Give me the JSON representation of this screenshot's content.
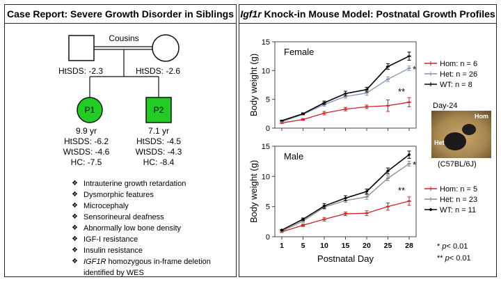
{
  "left_panel": {
    "title": "Case Report: Severe Growth Disorder in Siblings",
    "pedigree": {
      "relation_label": "Cousins",
      "father_htsds": "HtSDS: -2.3",
      "mother_htsds": "HtSDS: -2.6",
      "colors": {
        "affected": "#22cc22",
        "outline": "#111111"
      },
      "patients": [
        {
          "id": "P1",
          "age": "9.9 yr",
          "htsds": "HtSDS: -6.2",
          "wtsds": "WtSDS: -4.6",
          "hc": "HC: -7.5"
        },
        {
          "id": "P2",
          "age": "7.1 yr",
          "htsds": "HtSDS: -4.5",
          "wtsds": "WtSDS: -4.3",
          "hc": "HC: -8.4"
        }
      ]
    },
    "features": [
      "Intrauterine growth retardation",
      "Dysmorphic features",
      "Microcephaly",
      "Sensorineural deafness",
      "Abnormally low bone density",
      "IGF-I resistance",
      "Insulin resistance",
      {
        "em": "IGF1R",
        "rest": " homozygous in-frame deletion"
      },
      "identified by WES"
    ]
  },
  "right_panel": {
    "title_em": "Igf1r",
    "title_rest": " Knock-in Mouse Model: Postnatal Growth Profiles",
    "photo": {
      "label_day": "Day-24",
      "label_hom": "Hom",
      "label_het": "Het",
      "caption": "(C57BL/6J)"
    },
    "pvalues": [
      "* p< 0.01",
      "** p< 0.01"
    ]
  },
  "chart_data": [
    {
      "type": "line",
      "title": "Female",
      "ylabel": "Body weight (g)",
      "xlabel": "",
      "x": [
        1,
        5,
        10,
        15,
        20,
        25,
        28
      ],
      "ylim": [
        0,
        15
      ],
      "yticks": [
        0,
        5,
        10,
        15
      ],
      "xticks": [
        "1",
        "5",
        "10",
        "15",
        "20",
        "25",
        "28"
      ],
      "legend_position": "right",
      "annotations": [
        "*",
        "**"
      ],
      "series": [
        {
          "name": "Hom:  n = 6",
          "color": "#cc2222",
          "marker": "dash",
          "values": [
            0.9,
            1.5,
            2.6,
            3.3,
            3.7,
            3.9,
            4.5
          ],
          "err": [
            0.1,
            0.15,
            0.3,
            0.3,
            0.3,
            1.0,
            0.8
          ]
        },
        {
          "name": "Het:  n = 26",
          "color": "#7f93b5",
          "marker": "dash",
          "values": [
            1.1,
            2.4,
            4.1,
            5.5,
            6.1,
            8.5,
            10.4
          ],
          "err": [
            0.1,
            0.15,
            0.3,
            0.3,
            0.4,
            0.4,
            0.4
          ]
        },
        {
          "name": "WT:    n = 8",
          "color": "#000000",
          "marker": "dash",
          "values": [
            1.3,
            2.5,
            4.4,
            6.0,
            6.7,
            10.7,
            12.5
          ],
          "err": [
            0.1,
            0.15,
            0.3,
            0.4,
            0.4,
            0.5,
            0.7
          ]
        }
      ]
    },
    {
      "type": "line",
      "title": "Male",
      "ylabel": "Body weight (g)",
      "xlabel": "Postnatal Day",
      "x": [
        1,
        5,
        10,
        15,
        20,
        25,
        28
      ],
      "ylim": [
        0,
        15
      ],
      "yticks": [
        0,
        5,
        10,
        15
      ],
      "xticks": [
        "1",
        "5",
        "10",
        "15",
        "20",
        "25",
        "28"
      ],
      "legend_position": "right",
      "annotations": [
        "*",
        "**"
      ],
      "series": [
        {
          "name": "Hom:  n = 5",
          "color": "#cc2222",
          "marker": "dash",
          "values": [
            0.8,
            1.9,
            2.9,
            3.8,
            3.9,
            5.0,
            5.9
          ],
          "err": [
            0.1,
            0.2,
            0.3,
            0.3,
            0.4,
            0.6,
            0.7
          ]
        },
        {
          "name": "Het:   n = 23",
          "color": "#888888",
          "marker": "dash",
          "values": [
            0.9,
            2.6,
            4.9,
            6.0,
            6.6,
            9.7,
            12.1
          ],
          "err": [
            0.1,
            0.2,
            0.3,
            0.3,
            0.4,
            0.4,
            0.4
          ]
        },
        {
          "name": "WT:    n = 11",
          "color": "#000000",
          "marker": "diamond",
          "values": [
            1.1,
            2.9,
            5.1,
            6.4,
            7.5,
            10.9,
            13.6
          ],
          "err": [
            0.1,
            0.2,
            0.4,
            0.4,
            0.4,
            0.5,
            0.6
          ]
        }
      ]
    }
  ]
}
